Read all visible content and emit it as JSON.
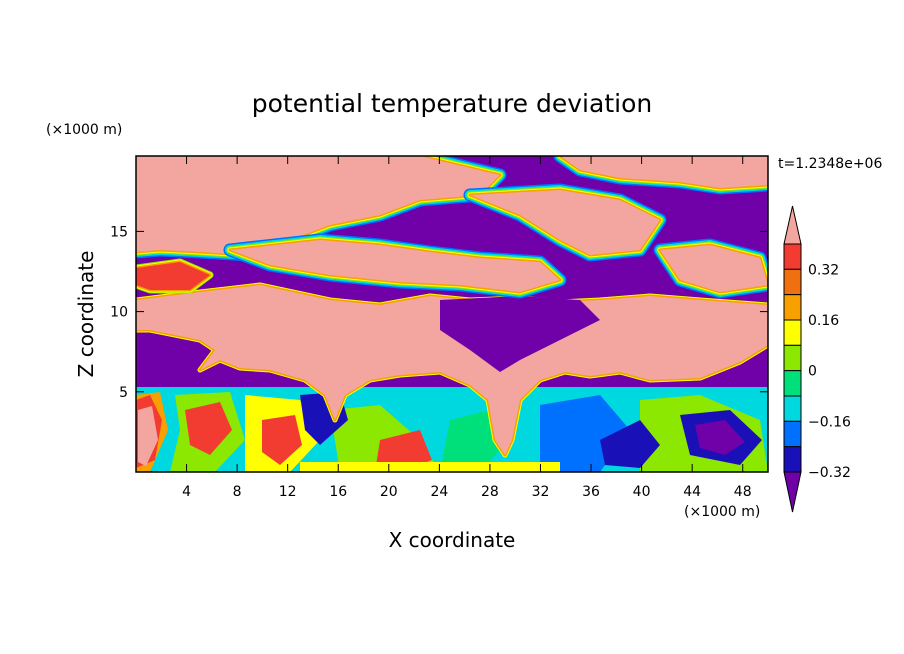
{
  "chart_data": {
    "type": "heatmap",
    "title": "potential temperature deviation",
    "xlabel": "X coordinate",
    "ylabel": "Z coordinate",
    "x_unit": "(×1000 m)",
    "y_unit": "(×1000 m)",
    "time_label": "t=1.2348e+06",
    "xlim": [
      0,
      50
    ],
    "ylim": [
      0,
      19.7
    ],
    "x_ticks": [
      4,
      8,
      12,
      16,
      20,
      24,
      28,
      32,
      36,
      40,
      44,
      48
    ],
    "y_ticks": [
      5,
      10,
      15
    ],
    "colorbar": {
      "levels": [
        -0.4,
        -0.32,
        -0.24,
        -0.16,
        -0.08,
        0,
        0.08,
        0.16,
        0.24,
        0.32,
        0.4
      ],
      "labels": [
        "0.32",
        "0.16",
        "0",
        "-0.16",
        "-0.32"
      ],
      "label_values": [
        0.32,
        0.16,
        0,
        -0.16,
        -0.32
      ],
      "colors": [
        "#f3a6a0",
        "#f23c32",
        "#f07010",
        "#f7a000",
        "#ffff00",
        "#8ce800",
        "#00e07a",
        "#00d8e0",
        "#0070ff",
        "#1a10b8",
        "#7000a8"
      ],
      "extend": "both"
    },
    "regions": {
      "pink_colors": "#f3a6a0",
      "purple_color": "#7000a8"
    }
  }
}
